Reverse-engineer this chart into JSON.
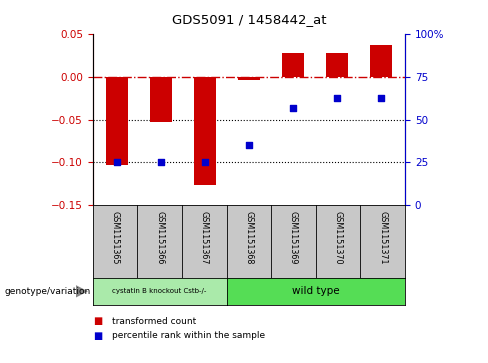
{
  "title": "GDS5091 / 1458442_at",
  "samples": [
    "GSM1151365",
    "GSM1151366",
    "GSM1151367",
    "GSM1151368",
    "GSM1151369",
    "GSM1151370",
    "GSM1151371"
  ],
  "bar_values": [
    -0.103,
    -0.053,
    -0.127,
    -0.003,
    0.028,
    0.028,
    0.038
  ],
  "dot_values": [
    25,
    25,
    25,
    35,
    57,
    63,
    63
  ],
  "bar_color": "#cc0000",
  "dot_color": "#0000cc",
  "ylim_left": [
    -0.15,
    0.05
  ],
  "ylim_right": [
    0,
    100
  ],
  "yticks_left": [
    -0.15,
    -0.1,
    -0.05,
    0,
    0.05
  ],
  "yticks_right": [
    0,
    25,
    50,
    75,
    100
  ],
  "dotted_lines": [
    -0.05,
    -0.1
  ],
  "group1_label": "cystatin B knockout Cstb-/-",
  "group2_label": "wild type",
  "group1_count": 3,
  "group2_count": 4,
  "group1_color": "#aaeaaa",
  "group2_color": "#55dd55",
  "bg_color": "#c8c8c8",
  "genotype_label": "genotype/variation",
  "legend1": "transformed count",
  "legend2": "percentile rank within the sample",
  "bar_width": 0.5
}
